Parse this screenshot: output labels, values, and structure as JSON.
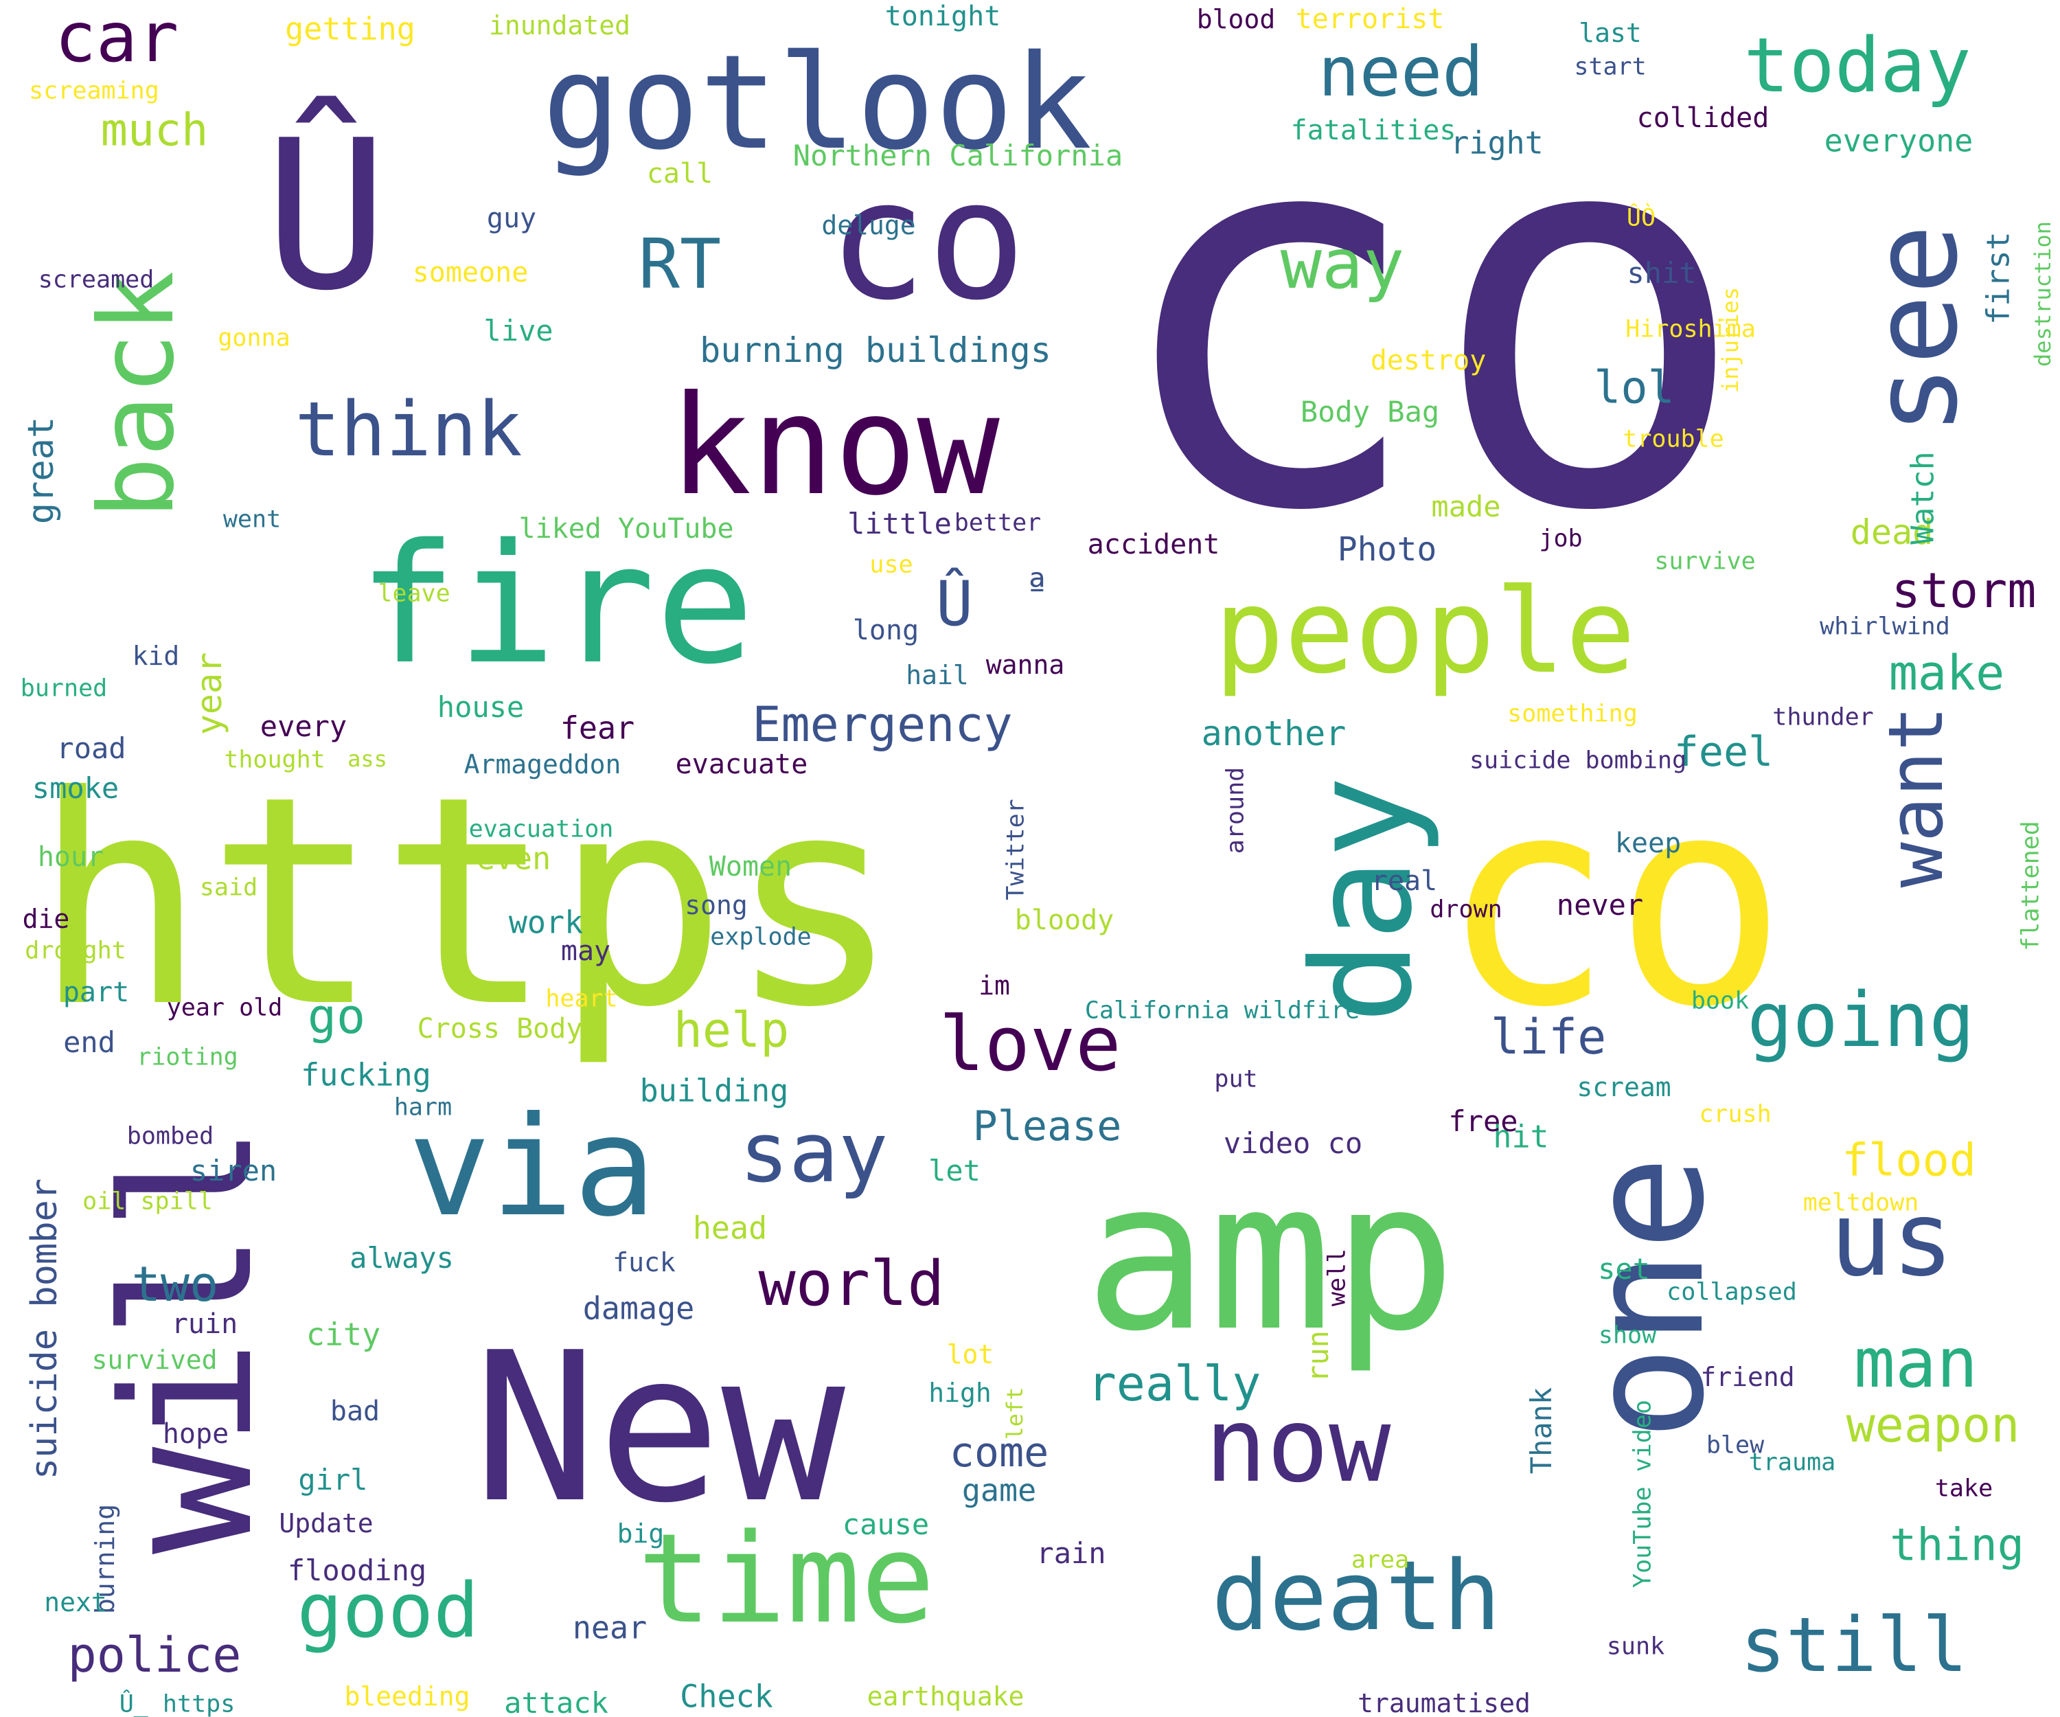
{
  "colors": {
    "background": "#ffffff",
    "palette_name": "viridis",
    "c1": "#440154",
    "c2": "#472d7b",
    "c3": "#3b528b",
    "c4": "#2c728e",
    "c5": "#21918c",
    "c6": "#28ae80",
    "c7": "#5ec962",
    "c8": "#addc30",
    "c9": "#fde725"
  },
  "words": [
    {
      "text": "co",
      "color": "c2",
      "orientation": "horizontal"
    },
    {
      "text": "https",
      "color": "c8",
      "orientation": "horizontal"
    },
    {
      "text": "co",
      "color": "c9",
      "orientation": "horizontal"
    },
    {
      "text": "amp",
      "color": "c7",
      "orientation": "horizontal"
    },
    {
      "text": "New",
      "color": "c2",
      "orientation": "horizontal"
    },
    {
      "text": "will",
      "color": "c2",
      "orientation": "vertical"
    },
    {
      "text": "one",
      "color": "c3",
      "orientation": "vertical"
    },
    {
      "text": "Û",
      "color": "c2",
      "orientation": "horizontal"
    },
    {
      "text": "co",
      "color": "c2",
      "orientation": "horizontal"
    },
    {
      "text": "fire",
      "color": "c6",
      "orientation": "horizontal"
    },
    {
      "text": "people",
      "color": "c8",
      "orientation": "horizontal"
    },
    {
      "text": "day",
      "color": "c5",
      "orientation": "vertical"
    },
    {
      "text": "gotlook",
      "color": "c3",
      "orientation": "horizontal"
    },
    {
      "text": "know",
      "color": "c1",
      "orientation": "horizontal"
    },
    {
      "text": "via",
      "color": "c4",
      "orientation": "horizontal"
    },
    {
      "text": "time",
      "color": "c7",
      "orientation": "horizontal"
    },
    {
      "text": "death",
      "color": "c4",
      "orientation": "horizontal"
    },
    {
      "text": "now",
      "color": "c2",
      "orientation": "horizontal"
    },
    {
      "text": "see",
      "color": "c3",
      "orientation": "vertical"
    },
    {
      "text": "back",
      "color": "c7",
      "orientation": "vertical"
    },
    {
      "text": "us",
      "color": "c3",
      "orientation": "horizontal"
    },
    {
      "text": "still",
      "color": "c4",
      "orientation": "horizontal"
    },
    {
      "text": "going",
      "color": "c5",
      "orientation": "horizontal"
    },
    {
      "text": "love",
      "color": "c1",
      "orientation": "horizontal"
    },
    {
      "text": "say",
      "color": "c3",
      "orientation": "horizontal"
    },
    {
      "text": "want",
      "color": "c3",
      "orientation": "vertical"
    },
    {
      "text": "today",
      "color": "c6",
      "orientation": "horizontal"
    },
    {
      "text": "good",
      "color": "c6",
      "orientation": "horizontal"
    },
    {
      "text": "think",
      "color": "c3",
      "orientation": "horizontal"
    },
    {
      "text": "need",
      "color": "c4",
      "orientation": "horizontal"
    },
    {
      "text": "world",
      "color": "c1",
      "orientation": "horizontal"
    },
    {
      "text": "man",
      "color": "c6",
      "orientation": "horizontal"
    },
    {
      "text": "car",
      "color": "c1",
      "orientation": "horizontal"
    },
    {
      "text": "way",
      "color": "c7",
      "orientation": "horizontal"
    },
    {
      "text": "RT",
      "color": "c4",
      "orientation": "horizontal"
    },
    {
      "text": "Û",
      "color": "c3",
      "orientation": "horizontal"
    },
    {
      "text": "ª",
      "color": "c3",
      "orientation": "horizontal"
    },
    {
      "text": "Emergency",
      "color": "c3",
      "orientation": "horizontal"
    },
    {
      "text": "really",
      "color": "c5",
      "orientation": "horizontal"
    },
    {
      "text": "police",
      "color": "c2",
      "orientation": "horizontal"
    },
    {
      "text": "storm",
      "color": "c1",
      "orientation": "horizontal"
    },
    {
      "text": "weapon",
      "color": "c8",
      "orientation": "horizontal"
    },
    {
      "text": "help",
      "color": "c8",
      "orientation": "horizontal"
    },
    {
      "text": "life",
      "color": "c3",
      "orientation": "horizontal"
    },
    {
      "text": "two",
      "color": "c4",
      "orientation": "horizontal"
    },
    {
      "text": "suicide bomber",
      "color": "c3",
      "orientation": "vertical"
    },
    {
      "text": "Please",
      "color": "c4",
      "orientation": "horizontal"
    },
    {
      "text": "thing",
      "color": "c6",
      "orientation": "horizontal"
    },
    {
      "text": "flood",
      "color": "c9",
      "orientation": "horizontal"
    },
    {
      "text": "make",
      "color": "c6",
      "orientation": "horizontal"
    },
    {
      "text": "go",
      "color": "c6",
      "orientation": "horizontal"
    },
    {
      "text": "lol",
      "color": "c4",
      "orientation": "horizontal"
    },
    {
      "text": "feel",
      "color": "c5",
      "orientation": "horizontal"
    },
    {
      "text": "come",
      "color": "c3",
      "orientation": "horizontal"
    },
    {
      "text": "burning buildings",
      "color": "c4",
      "orientation": "horizontal"
    },
    {
      "text": "much",
      "color": "c8",
      "orientation": "horizontal"
    },
    {
      "text": "great",
      "color": "c4",
      "orientation": "vertical"
    },
    {
      "text": "year",
      "color": "c8",
      "orientation": "vertical"
    },
    {
      "text": "another",
      "color": "c5",
      "orientation": "horizontal"
    },
    {
      "text": "dead",
      "color": "c8",
      "orientation": "horizontal"
    },
    {
      "text": "Photo",
      "color": "c3",
      "orientation": "horizontal"
    },
    {
      "text": "Watch",
      "color": "c6",
      "orientation": "vertical"
    },
    {
      "text": "first",
      "color": "c4",
      "orientation": "vertical"
    },
    {
      "text": "everyone",
      "color": "c6",
      "orientation": "horizontal"
    },
    {
      "text": "right",
      "color": "c4",
      "orientation": "horizontal"
    },
    {
      "text": "getting",
      "color": "c9",
      "orientation": "horizontal"
    },
    {
      "text": "Northern California",
      "color": "c7",
      "orientation": "horizontal"
    },
    {
      "text": "little",
      "color": "c2",
      "orientation": "horizontal"
    },
    {
      "text": "Body Bag",
      "color": "c7",
      "orientation": "horizontal"
    },
    {
      "text": "shit",
      "color": "c3",
      "orientation": "horizontal"
    },
    {
      "text": "building",
      "color": "c5",
      "orientation": "horizontal"
    },
    {
      "text": "fucking",
      "color": "c5",
      "orientation": "horizontal"
    },
    {
      "text": "fear",
      "color": "c1",
      "orientation": "horizontal"
    },
    {
      "text": "every",
      "color": "c1",
      "orientation": "horizontal"
    },
    {
      "text": "house",
      "color": "c6",
      "orientation": "horizontal"
    },
    {
      "text": "even",
      "color": "c8",
      "orientation": "horizontal"
    },
    {
      "text": "work",
      "color": "c5",
      "orientation": "horizontal"
    },
    {
      "text": "evacuate",
      "color": "c1",
      "orientation": "horizontal"
    },
    {
      "text": "damage",
      "color": "c3",
      "orientation": "horizontal"
    },
    {
      "text": "city",
      "color": "c7",
      "orientation": "horizontal"
    },
    {
      "text": "game",
      "color": "c4",
      "orientation": "horizontal"
    },
    {
      "text": "cause",
      "color": "c6",
      "orientation": "horizontal"
    },
    {
      "text": "siren",
      "color": "c4",
      "orientation": "horizontal"
    },
    {
      "text": "hit",
      "color": "c6",
      "orientation": "horizontal"
    },
    {
      "text": "never",
      "color": "c1",
      "orientation": "horizontal"
    },
    {
      "text": "smoke",
      "color": "c5",
      "orientation": "horizontal"
    },
    {
      "text": "road",
      "color": "c3",
      "orientation": "horizontal"
    },
    {
      "text": "live",
      "color": "c6",
      "orientation": "horizontal"
    },
    {
      "text": "guy",
      "color": "c3",
      "orientation": "horizontal"
    },
    {
      "text": "someone",
      "color": "c9",
      "orientation": "horizontal"
    },
    {
      "text": "deluge",
      "color": "c4",
      "orientation": "horizontal"
    },
    {
      "text": "call",
      "color": "c8",
      "orientation": "horizontal"
    },
    {
      "text": "screamed",
      "color": "c2",
      "orientation": "horizontal"
    },
    {
      "text": "gonna",
      "color": "c9",
      "orientation": "horizontal"
    },
    {
      "text": "screaming",
      "color": "c9",
      "orientation": "horizontal"
    },
    {
      "text": "inundated",
      "color": "c8",
      "orientation": "horizontal"
    },
    {
      "text": "tonight",
      "color": "c5",
      "orientation": "horizontal"
    },
    {
      "text": "blood",
      "color": "c1",
      "orientation": "horizontal"
    },
    {
      "text": "terrorist",
      "color": "c9",
      "orientation": "horizontal"
    },
    {
      "text": "last",
      "color": "c5",
      "orientation": "horizontal"
    },
    {
      "text": "start",
      "color": "c3",
      "orientation": "horizontal"
    },
    {
      "text": "collided",
      "color": "c1",
      "orientation": "horizontal"
    },
    {
      "text": "fatalities",
      "color": "c6",
      "orientation": "horizontal"
    },
    {
      "text": "ÛÒ",
      "color": "c9",
      "orientation": "horizontal"
    },
    {
      "text": "destruction",
      "color": "c7",
      "orientation": "vertical"
    },
    {
      "text": "Hiroshima",
      "color": "c9",
      "orientation": "horizontal"
    },
    {
      "text": "destroy",
      "color": "c9",
      "orientation": "horizontal"
    },
    {
      "text": "injuries",
      "color": "c9",
      "orientation": "vertical"
    },
    {
      "text": "trouble",
      "color": "c9",
      "orientation": "horizontal"
    },
    {
      "text": "made",
      "color": "c8",
      "orientation": "horizontal"
    },
    {
      "text": "better",
      "color": "c2",
      "orientation": "horizontal"
    },
    {
      "text": "liked YouTube",
      "color": "c7",
      "orientation": "horizontal"
    },
    {
      "text": "went",
      "color": "c4",
      "orientation": "horizontal"
    },
    {
      "text": "accident",
      "color": "c1",
      "orientation": "horizontal"
    },
    {
      "text": "job",
      "color": "c1",
      "orientation": "horizontal"
    },
    {
      "text": "survive",
      "color": "c7",
      "orientation": "horizontal"
    },
    {
      "text": "use",
      "color": "c9",
      "orientation": "horizontal"
    },
    {
      "text": "leave",
      "color": "c8",
      "orientation": "horizontal"
    },
    {
      "text": "long",
      "color": "c3",
      "orientation": "horizontal"
    },
    {
      "text": "whirlwind",
      "color": "c3",
      "orientation": "horizontal"
    },
    {
      "text": "kid",
      "color": "c3",
      "orientation": "horizontal"
    },
    {
      "text": "hail",
      "color": "c4",
      "orientation": "horizontal"
    },
    {
      "text": "wanna",
      "color": "c1",
      "orientation": "horizontal"
    },
    {
      "text": "burned",
      "color": "c6",
      "orientation": "horizontal"
    },
    {
      "text": "something",
      "color": "c9",
      "orientation": "horizontal"
    },
    {
      "text": "thunder",
      "color": "c2",
      "orientation": "horizontal"
    },
    {
      "text": "thought",
      "color": "c8",
      "orientation": "horizontal"
    },
    {
      "text": "ass",
      "color": "c8",
      "orientation": "horizontal"
    },
    {
      "text": "Armageddon",
      "color": "c4",
      "orientation": "horizontal"
    },
    {
      "text": "suicide bombing",
      "color": "c2",
      "orientation": "horizontal"
    },
    {
      "text": "Twitter",
      "color": "c3",
      "orientation": "vertical"
    },
    {
      "text": "around",
      "color": "c2",
      "orientation": "vertical"
    },
    {
      "text": "evacuation",
      "color": "c6",
      "orientation": "horizontal"
    },
    {
      "text": "keep",
      "color": "c4",
      "orientation": "horizontal"
    },
    {
      "text": "flattened",
      "color": "c7",
      "orientation": "vertical"
    },
    {
      "text": "hour",
      "color": "c7",
      "orientation": "horizontal"
    },
    {
      "text": "Women",
      "color": "c7",
      "orientation": "horizontal"
    },
    {
      "text": "said",
      "color": "c8",
      "orientation": "horizontal"
    },
    {
      "text": "song",
      "color": "c3",
      "orientation": "horizontal"
    },
    {
      "text": "real",
      "color": "c3",
      "orientation": "horizontal"
    },
    {
      "text": "drown",
      "color": "c1",
      "orientation": "horizontal"
    },
    {
      "text": "die",
      "color": "c1",
      "orientation": "horizontal"
    },
    {
      "text": "drought",
      "color": "c8",
      "orientation": "horizontal"
    },
    {
      "text": "bloody",
      "color": "c8",
      "orientation": "horizontal"
    },
    {
      "text": "explode",
      "color": "c4",
      "orientation": "horizontal"
    },
    {
      "text": "may",
      "color": "c2",
      "orientation": "horizontal"
    },
    {
      "text": "part",
      "color": "c5",
      "orientation": "horizontal"
    },
    {
      "text": "heart",
      "color": "c9",
      "orientation": "horizontal"
    },
    {
      "text": "year old",
      "color": "c1",
      "orientation": "horizontal"
    },
    {
      "text": "im",
      "color": "c1",
      "orientation": "horizontal"
    },
    {
      "text": "California wildfire",
      "color": "c5",
      "orientation": "horizontal"
    },
    {
      "text": "book",
      "color": "c6",
      "orientation": "horizontal"
    },
    {
      "text": "end",
      "color": "c3",
      "orientation": "horizontal"
    },
    {
      "text": "Cross Body",
      "color": "c8",
      "orientation": "horizontal"
    },
    {
      "text": "rioting",
      "color": "c7",
      "orientation": "horizontal"
    },
    {
      "text": "harm",
      "color": "c4",
      "orientation": "horizontal"
    },
    {
      "text": "put",
      "color": "c2",
      "orientation": "horizontal"
    },
    {
      "text": "scream",
      "color": "c5",
      "orientation": "horizontal"
    },
    {
      "text": "crush",
      "color": "c9",
      "orientation": "horizontal"
    },
    {
      "text": "bombed",
      "color": "c2",
      "orientation": "horizontal"
    },
    {
      "text": "free",
      "color": "c1",
      "orientation": "horizontal"
    },
    {
      "text": "video co",
      "color": "c2",
      "orientation": "horizontal"
    },
    {
      "text": "let",
      "color": "c6",
      "orientation": "horizontal"
    },
    {
      "text": "oil spill",
      "color": "c8",
      "orientation": "horizontal"
    },
    {
      "text": "meltdown",
      "color": "c9",
      "orientation": "horizontal"
    },
    {
      "text": "head",
      "color": "c8",
      "orientation": "horizontal"
    },
    {
      "text": "always",
      "color": "c5",
      "orientation": "horizontal"
    },
    {
      "text": "fuck",
      "color": "c3",
      "orientation": "horizontal"
    },
    {
      "text": "well",
      "color": "c1",
      "orientation": "vertical"
    },
    {
      "text": "set",
      "color": "c6",
      "orientation": "horizontal"
    },
    {
      "text": "collapsed",
      "color": "c5",
      "orientation": "horizontal"
    },
    {
      "text": "ruin",
      "color": "c2",
      "orientation": "horizontal"
    },
    {
      "text": "survived",
      "color": "c7",
      "orientation": "horizontal"
    },
    {
      "text": "show",
      "color": "c6",
      "orientation": "horizontal"
    },
    {
      "text": "lot",
      "color": "c9",
      "orientation": "horizontal"
    },
    {
      "text": "run",
      "color": "c8",
      "orientation": "vertical"
    },
    {
      "text": "friend",
      "color": "c2",
      "orientation": "horizontal"
    },
    {
      "text": "high",
      "color": "c5",
      "orientation": "horizontal"
    },
    {
      "text": "left",
      "color": "c8",
      "orientation": "vertical"
    },
    {
      "text": "Thank",
      "color": "c4",
      "orientation": "vertical"
    },
    {
      "text": "YouTube video",
      "color": "c6",
      "orientation": "vertical"
    },
    {
      "text": "bad",
      "color": "c3",
      "orientation": "horizontal"
    },
    {
      "text": "hope",
      "color": "c2",
      "orientation": "horizontal"
    },
    {
      "text": "blew",
      "color": "c3",
      "orientation": "horizontal"
    },
    {
      "text": "trauma",
      "color": "c5",
      "orientation": "horizontal"
    },
    {
      "text": "girl",
      "color": "c5",
      "orientation": "horizontal"
    },
    {
      "text": "take",
      "color": "c1",
      "orientation": "horizontal"
    },
    {
      "text": "Update",
      "color": "c2",
      "orientation": "horizontal"
    },
    {
      "text": "burning",
      "color": "c3",
      "orientation": "vertical"
    },
    {
      "text": "big",
      "color": "c5",
      "orientation": "horizontal"
    },
    {
      "text": "flooding",
      "color": "c2",
      "orientation": "horizontal"
    },
    {
      "text": "rain",
      "color": "c2",
      "orientation": "horizontal"
    },
    {
      "text": "area",
      "color": "c8",
      "orientation": "horizontal"
    },
    {
      "text": "next",
      "color": "c5",
      "orientation": "horizontal"
    },
    {
      "text": "near",
      "color": "c3",
      "orientation": "horizontal"
    },
    {
      "text": "sunk",
      "color": "c2",
      "orientation": "horizontal"
    },
    {
      "text": "bleeding",
      "color": "c9",
      "orientation": "horizontal"
    },
    {
      "text": "attack",
      "color": "c6",
      "orientation": "horizontal"
    },
    {
      "text": "Check",
      "color": "c5",
      "orientation": "horizontal"
    },
    {
      "text": "earthquake",
      "color": "c8",
      "orientation": "horizontal"
    },
    {
      "text": "traumatised",
      "color": "c2",
      "orientation": "horizontal"
    },
    {
      "text": "Û_ https",
      "color": "c5",
      "orientation": "horizontal"
    }
  ]
}
